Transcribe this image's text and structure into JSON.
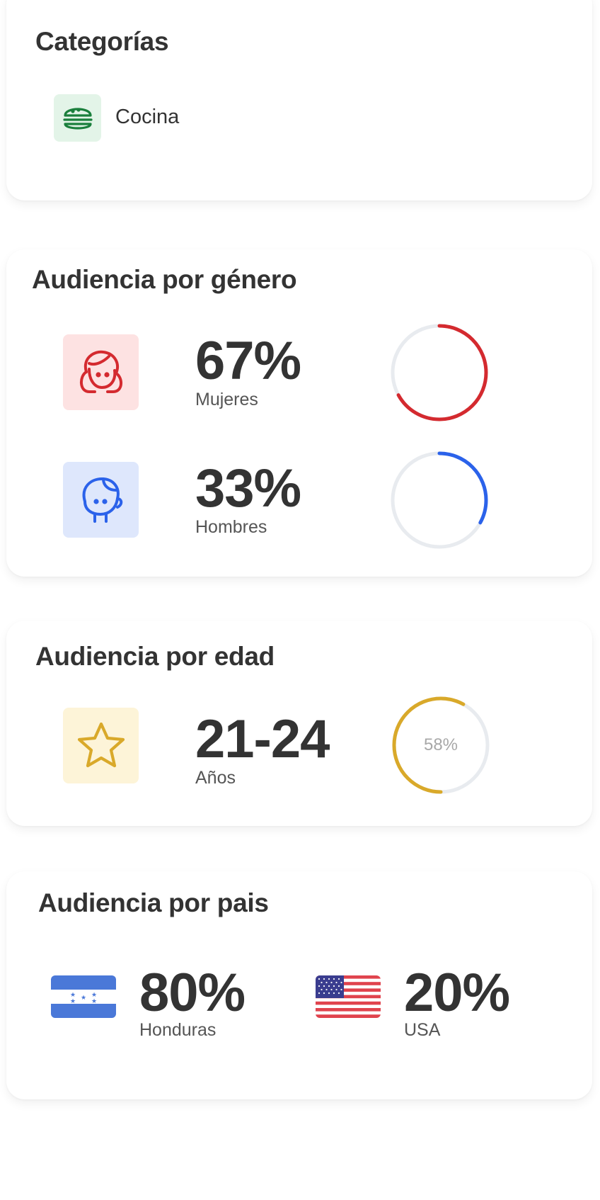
{
  "categories": {
    "title": "Categorías",
    "items": [
      {
        "label": "Cocina",
        "icon": "hamburger-icon",
        "color": "#1a7f3c",
        "bg": "#e3f4e8"
      }
    ]
  },
  "gender": {
    "title": "Audiencia por género",
    "women": {
      "percent": "67%",
      "label": "Mujeres",
      "value": 67,
      "icon": "girl-face-icon",
      "color": "#d42a2f",
      "bg": "#fde2e2"
    },
    "men": {
      "percent": "33%",
      "label": "Hombres",
      "value": 33,
      "icon": "boy-face-icon",
      "color": "#2b62ea",
      "bg": "#dee7fc"
    }
  },
  "age": {
    "title": "Audiencia por edad",
    "range": "21-24",
    "label": "Años",
    "ring_text": "58%",
    "value": 58,
    "icon": "star-icon",
    "color": "#d9a92a",
    "bg": "#fdf4d8"
  },
  "country": {
    "title": "Audiencia por pais",
    "items": [
      {
        "percent": "80%",
        "label": "Honduras",
        "flag": "honduras-flag"
      },
      {
        "percent": "20%",
        "label": "USA",
        "flag": "usa-flag"
      }
    ]
  },
  "colors": {
    "track": "#e8ebef",
    "text": "#333333"
  }
}
